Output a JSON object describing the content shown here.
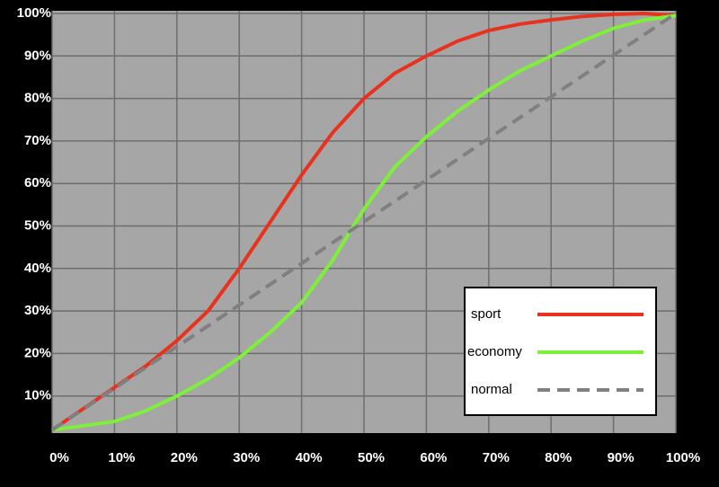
{
  "chart_data": {
    "type": "line",
    "x": [
      0,
      5,
      10,
      15,
      20,
      25,
      30,
      35,
      40,
      45,
      50,
      55,
      60,
      65,
      70,
      75,
      80,
      85,
      90,
      95,
      100
    ],
    "series": [
      {
        "name": "sport",
        "color": "#e8321e",
        "style": "solid",
        "values": [
          2,
          7,
          12,
          17,
          23,
          30,
          40,
          51,
          62,
          72,
          80,
          86,
          90,
          93.5,
          96,
          97.5,
          98.5,
          99.3,
          99.8,
          100,
          99.5
        ]
      },
      {
        "name": "economy",
        "color": "#7ef03a",
        "style": "solid",
        "values": [
          2,
          3,
          4,
          6.5,
          10,
          14,
          19,
          25,
          32,
          42,
          54,
          64,
          71,
          77,
          82,
          86.5,
          90,
          93.5,
          96.5,
          98.5,
          99.5
        ]
      },
      {
        "name": "normal",
        "color": "#808080",
        "style": "dashed",
        "values": [
          2,
          6.9,
          11.8,
          16.7,
          21.6,
          26.5,
          31.4,
          36.3,
          41.2,
          46.1,
          51,
          55.9,
          60.8,
          65.7,
          70.6,
          75.5,
          80.4,
          85.3,
          90.2,
          95.1,
          100
        ]
      }
    ],
    "xlim": [
      0,
      100
    ],
    "ylim": [
      0,
      100
    ],
    "xticks": [
      {
        "value": 0,
        "label": "0%"
      },
      {
        "value": 10,
        "label": "10%"
      },
      {
        "value": 20,
        "label": "20%"
      },
      {
        "value": 30,
        "label": "30%"
      },
      {
        "value": 40,
        "label": "40%"
      },
      {
        "value": 50,
        "label": "50%"
      },
      {
        "value": 60,
        "label": "60%"
      },
      {
        "value": 70,
        "label": "70%"
      },
      {
        "value": 80,
        "label": "80%"
      },
      {
        "value": 90,
        "label": "90%"
      },
      {
        "value": 100,
        "label": "100%"
      }
    ],
    "yticks": [
      {
        "value": 10,
        "label": "10%"
      },
      {
        "value": 20,
        "label": "20%"
      },
      {
        "value": 30,
        "label": "30%"
      },
      {
        "value": 40,
        "label": "40%"
      },
      {
        "value": 50,
        "label": "50%"
      },
      {
        "value": 60,
        "label": "60%"
      },
      {
        "value": 70,
        "label": "70%"
      },
      {
        "value": 80,
        "label": "80%"
      },
      {
        "value": 90,
        "label": "90%"
      },
      {
        "value": 100,
        "label": "100%"
      }
    ],
    "grid": true,
    "legend": "lower right"
  }
}
